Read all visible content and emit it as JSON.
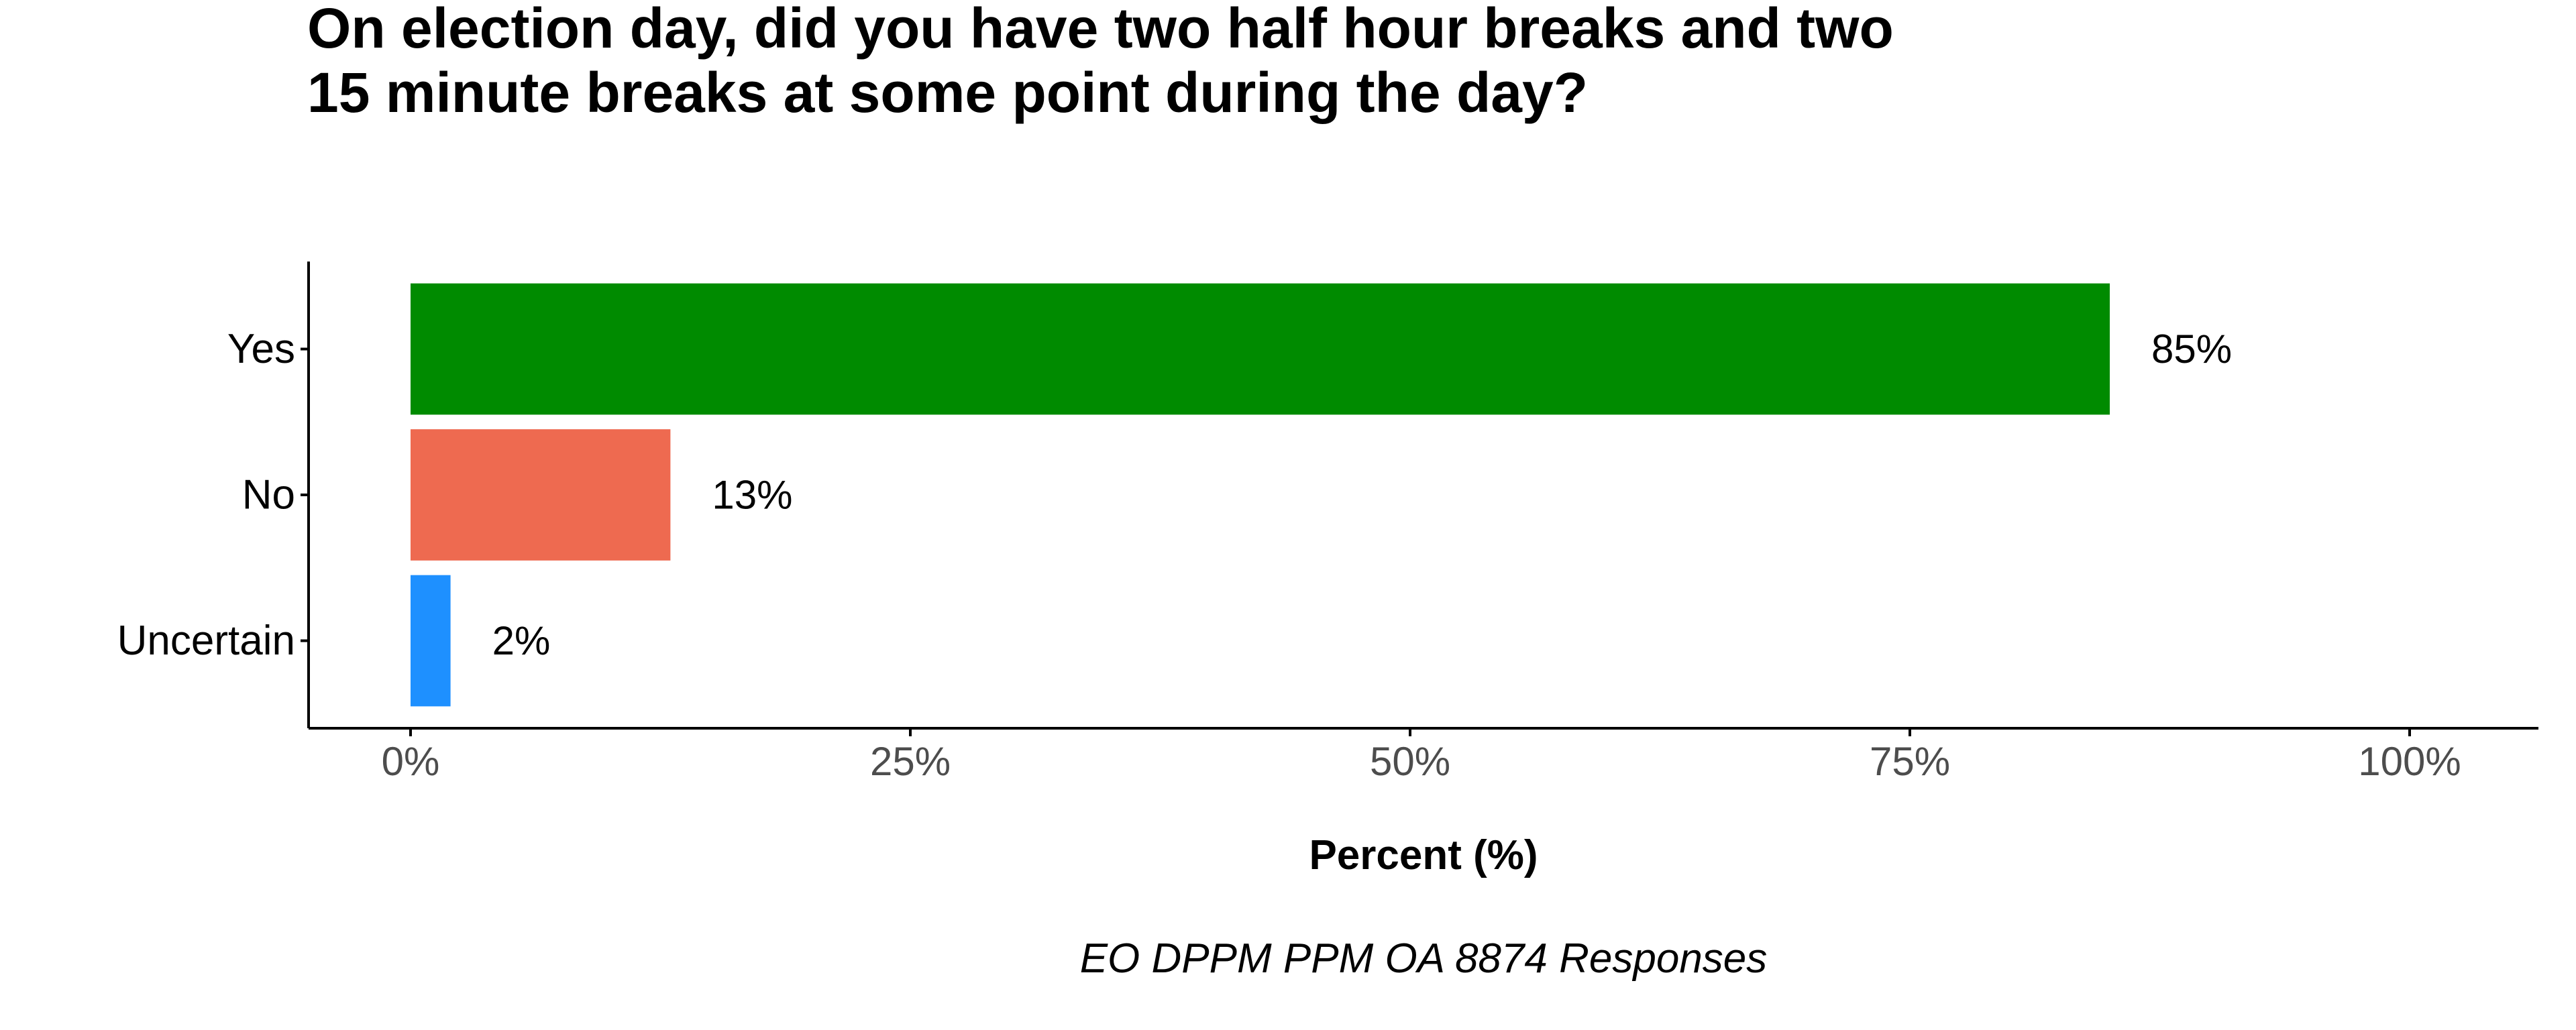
{
  "chart_data": {
    "type": "bar",
    "orientation": "horizontal",
    "title": "On election day, did you have two half hour breaks and two 15 minute breaks at some point during the day?",
    "xlabel": "Percent (%)",
    "ylabel": "",
    "caption": "EO DPPM PPM OA 8874 Responses",
    "categories": [
      "Yes",
      "No",
      "Uncertain"
    ],
    "values": [
      85,
      13,
      2
    ],
    "value_labels": [
      "85%",
      "13%",
      "2%"
    ],
    "colors": [
      "#008B00",
      "#EE6A50",
      "#1E90FF"
    ],
    "xlim": [
      0,
      100
    ],
    "x_ticks": [
      0,
      25,
      50,
      75,
      100
    ],
    "x_tick_labels": [
      "0%",
      "25%",
      "50%",
      "75%",
      "100%"
    ],
    "grid": false,
    "legend": "none"
  }
}
